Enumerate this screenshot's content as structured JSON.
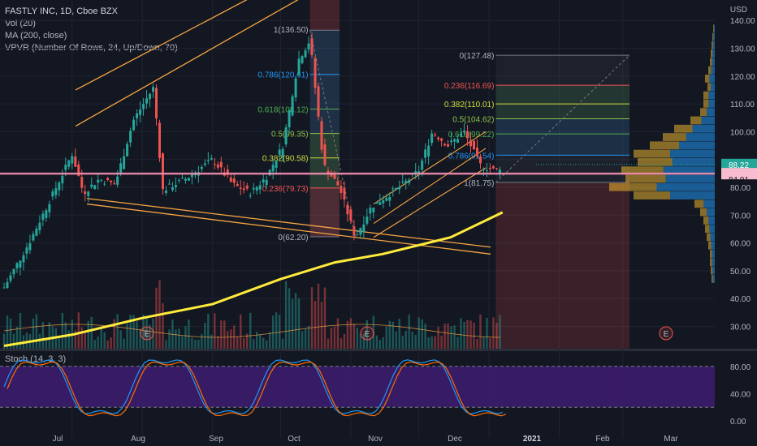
{
  "header": {
    "symbol_line": "FASTLY INC, 1D, Cboe BZX",
    "indicators": [
      "Vol (20)",
      "MA (200, close)",
      "VPVR (Number Of Rows, 24, Up/Down, 70)"
    ],
    "currency": "USD",
    "stoch_label": "Stoch (14, 3, 3)"
  },
  "colors": {
    "background": "#131722",
    "up": "#26a69a",
    "down": "#ef5350",
    "ma": "#ffeb3b",
    "channel": "#f7a541",
    "price_line": "#f48fb1",
    "stoch_k": "#2196f3",
    "stoch_d": "#ff6d00",
    "stoch_band": "#3c1c6b"
  },
  "chart_data": {
    "type": "candlestick",
    "x_ticks": [
      "Jul",
      "Aug",
      "Sep",
      "Oct",
      "Nov",
      "Dec",
      "2021",
      "Feb",
      "Mar"
    ],
    "y_ticks": [
      30,
      40,
      50,
      60,
      70,
      80,
      90,
      100,
      110,
      120,
      130,
      140
    ],
    "ylim": [
      20,
      143
    ],
    "last_price": "88.22",
    "horizontal_line": "84.91",
    "price_path": [
      [
        "2020-06-01",
        44
      ],
      [
        "2020-06-12",
        60
      ],
      [
        "2020-06-24",
        80
      ],
      [
        "2020-07-01",
        92
      ],
      [
        "2020-07-06",
        78
      ],
      [
        "2020-07-13",
        83
      ],
      [
        "2020-07-20",
        81
      ],
      [
        "2020-07-28",
        104
      ],
      [
        "2020-08-06",
        116
      ],
      [
        "2020-08-10",
        79
      ],
      [
        "2020-08-20",
        83
      ],
      [
        "2020-09-01",
        90
      ],
      [
        "2020-09-10",
        81
      ],
      [
        "2020-09-18",
        78
      ],
      [
        "2020-09-25",
        84
      ],
      [
        "2020-10-02",
        95
      ],
      [
        "2020-10-09",
        126
      ],
      [
        "2020-10-14",
        133
      ],
      [
        "2020-10-20",
        88
      ],
      [
        "2020-10-27",
        80
      ],
      [
        "2020-11-03",
        62
      ],
      [
        "2020-11-10",
        73
      ],
      [
        "2020-11-17",
        77
      ],
      [
        "2020-11-24",
        81
      ],
      [
        "2020-12-01",
        86
      ],
      [
        "2020-12-07",
        100
      ],
      [
        "2020-12-14",
        95
      ],
      [
        "2020-12-21",
        100
      ],
      [
        "2020-12-28",
        88
      ],
      [
        "2021-01-04",
        86
      ],
      [
        "2021-01-07",
        88.22
      ]
    ],
    "moving_average_200": [
      [
        "2020-06-01",
        23
      ],
      [
        "2020-07-01",
        27
      ],
      [
        "2020-08-01",
        33
      ],
      [
        "2020-09-01",
        38
      ],
      [
        "2020-10-01",
        47
      ],
      [
        "2020-10-25",
        53
      ],
      [
        "2020-11-15",
        56
      ],
      [
        "2020-12-15",
        62
      ],
      [
        "2021-01-07",
        71
      ]
    ],
    "volume_events": [
      "E",
      "E",
      "E"
    ],
    "fib_left": {
      "high": "1(136.50)",
      "low": "0(62.20)",
      "levels": [
        "0.786(120.61)",
        "0.618(108.12)",
        "0.5(99.35)",
        "0.382(90.58)",
        "0.236(79.73)"
      ]
    },
    "fib_right": {
      "top": "0(127.48)",
      "bottom": "1(81.75)",
      "levels": [
        "0.236(116.69)",
        "0.382(110.01)",
        "0.5(104.62)",
        "0.618(99.22)",
        "0.786(91.54)"
      ]
    },
    "stochastic": {
      "k_d_period": "14, 3, 3",
      "y_ticks": [
        "80.00",
        "40.00",
        "0.00"
      ],
      "ylim": [
        0,
        100
      ],
      "band": [
        20,
        80
      ]
    }
  }
}
